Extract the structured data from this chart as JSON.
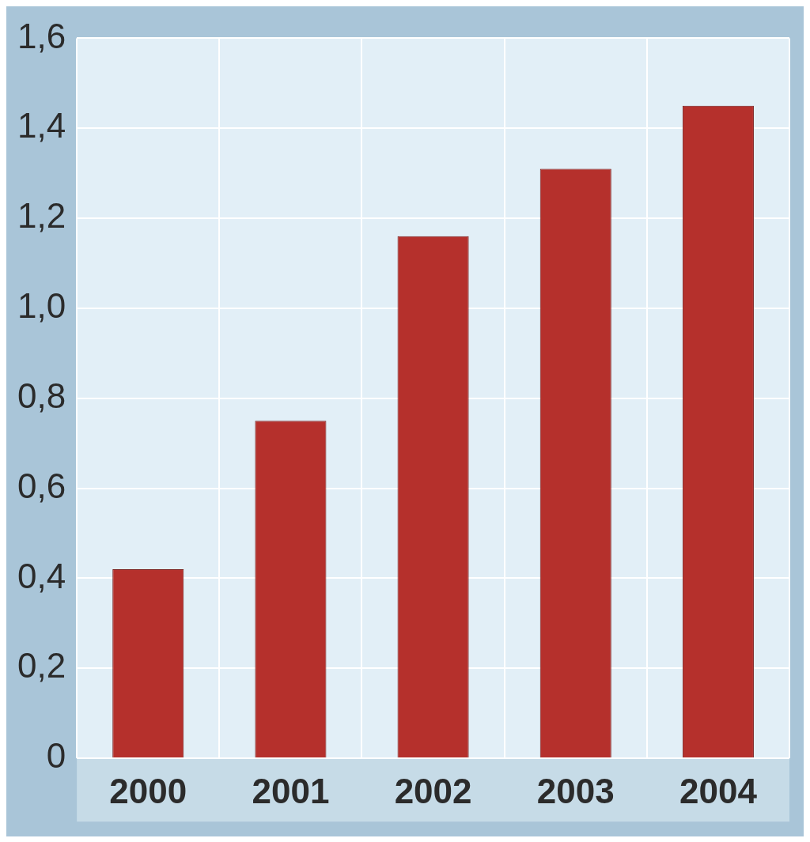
{
  "chart_data": {
    "type": "bar",
    "categories": [
      "2000",
      "2001",
      "2002",
      "2003",
      "2004"
    ],
    "values": [
      0.42,
      0.75,
      1.16,
      1.31,
      1.45
    ],
    "color": "#b5302c",
    "ylim": [
      0,
      1.6
    ],
    "yticks": [
      0,
      {
        "value": 0.2,
        "label": "0,2"
      },
      {
        "value": 0.4,
        "label": "0,4"
      },
      {
        "value": 0.6,
        "label": "0,6"
      },
      {
        "value": 0.8,
        "label": "0,8"
      },
      {
        "value": 1.0,
        "label": "1,0"
      },
      {
        "value": 1.2,
        "label": "1,2"
      },
      {
        "value": 1.4,
        "label": "1,4"
      },
      {
        "value": 1.6,
        "label": "1,6"
      }
    ],
    "grid": true
  }
}
